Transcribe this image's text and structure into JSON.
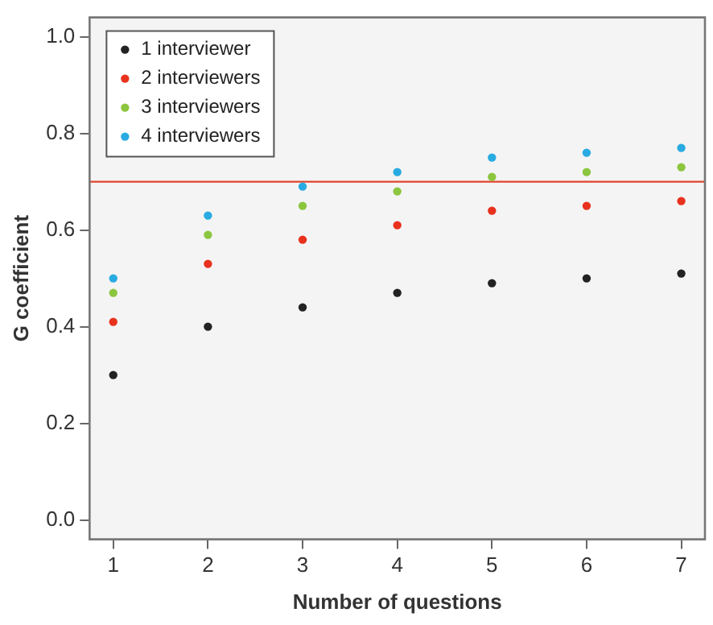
{
  "chart_data": {
    "type": "scatter",
    "xlabel": "Number of questions",
    "ylabel": "G coefficient",
    "x": [
      1,
      2,
      3,
      4,
      5,
      6,
      7
    ],
    "series": [
      {
        "name": "1 interviewer",
        "color": "#222222",
        "values": [
          0.3,
          0.4,
          0.44,
          0.47,
          0.49,
          0.5,
          0.51
        ]
      },
      {
        "name": "2 interviewers",
        "color": "#e8321e",
        "values": [
          0.41,
          0.53,
          0.58,
          0.61,
          0.64,
          0.65,
          0.66
        ]
      },
      {
        "name": "3 interviewers",
        "color": "#8cc63f",
        "values": [
          0.47,
          0.59,
          0.65,
          0.68,
          0.71,
          0.72,
          0.73
        ]
      },
      {
        "name": "4 interviewers",
        "color": "#29abe2",
        "values": [
          0.5,
          0.63,
          0.69,
          0.72,
          0.75,
          0.76,
          0.77
        ]
      }
    ],
    "xlim": [
      0.75,
      7.25
    ],
    "xticks": [
      1,
      2,
      3,
      4,
      5,
      6,
      7
    ],
    "ylim": [
      -0.04,
      1.04
    ],
    "yticks": [
      {
        "value": 0,
        "label": "0.0"
      },
      {
        "value": 0.2,
        "label": "0.2"
      },
      {
        "value": 0.4,
        "label": "0.4"
      },
      {
        "value": 0.6,
        "label": "0.6"
      },
      {
        "value": 0.8,
        "label": "0.8"
      },
      {
        "value": 1,
        "label": "1.0"
      }
    ],
    "ref_lines": [
      {
        "axis": "y",
        "value": 0.7,
        "color": "#e0452c"
      }
    ],
    "legend": "top left",
    "marker": "circle"
  }
}
